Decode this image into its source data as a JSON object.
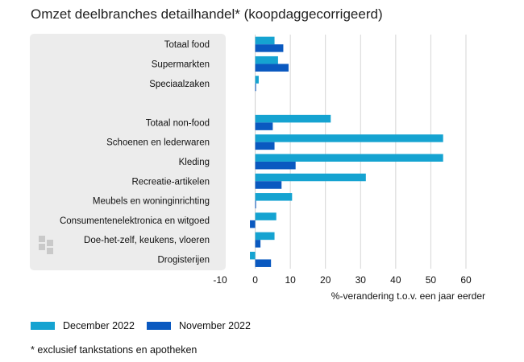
{
  "title": "Omzet deelbranches detailhandel* (koopdaggecorrigeerd)",
  "footnote": "* exclusief tankstations en apotheken",
  "colors": {
    "series1": "#15a3d1",
    "series2": "#0a59c0",
    "panel": "#ececec",
    "grid": "#d6d6d6"
  },
  "chart_data": {
    "type": "bar",
    "orientation": "horizontal",
    "categories": [
      "Totaal food",
      "Supermarkten",
      "Speciaalzaken",
      "",
      "Totaal non-food",
      "Schoenen en lederwaren",
      "Kleding",
      "Recreatie-artikelen",
      "Meubels en woninginrichting",
      "Consumentenelektronica en witgoed",
      "Doe-het-zelf, keukens, vloeren",
      "Drogisterijen"
    ],
    "series": [
      {
        "name": "December 2022",
        "values": [
          5.5,
          6.5,
          1.0,
          null,
          21.5,
          53.5,
          53.5,
          31.5,
          10.5,
          6.0,
          5.5,
          -1.5
        ]
      },
      {
        "name": "November 2022",
        "values": [
          8.0,
          9.5,
          0.0,
          null,
          5.0,
          5.5,
          11.5,
          7.5,
          0.0,
          -1.5,
          1.5,
          4.5
        ]
      }
    ],
    "xticks": [
      -10,
      0,
      10,
      20,
      30,
      40,
      50,
      60
    ],
    "xlim": [
      -10,
      60
    ],
    "xlabel": "%-verandering t.o.v. een jaar eerder",
    "ylabel": "",
    "grid": true,
    "legend_position": "bottom"
  }
}
